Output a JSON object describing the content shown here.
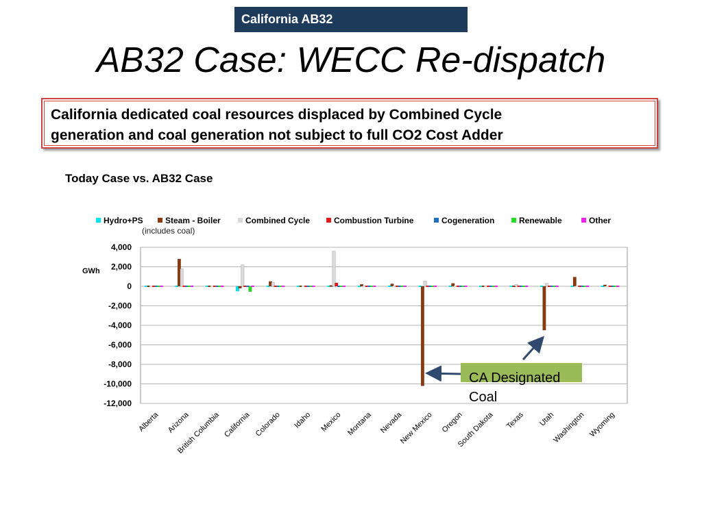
{
  "slide": {
    "tag": "California AB32",
    "title": "AB32 Case: WECC Re-dispatch",
    "callout_line1": "California dedicated coal resources displaced by Combined Cycle",
    "callout_line2": "generation and coal generation not subject to full CO2 Cost Adder",
    "subtitle": "Today Case  vs. AB32 Case",
    "note": "(includes coal)",
    "annotation": "CA Designated Coal"
  },
  "colors": {
    "tag_bg": "#1f3b5c",
    "callout_border": "#d04040",
    "annotation_bg": "#9bbb59"
  },
  "chart_data": {
    "type": "bar",
    "ylabel": "GWh",
    "ylim": [
      -12000,
      4000
    ],
    "yticks": [
      "4,000",
      "2,000",
      "0",
      "-2,000",
      "-4,000",
      "-6,000",
      "-8,000",
      "-10,000",
      "-12,000"
    ],
    "ytick_values": [
      4000,
      2000,
      0,
      -2000,
      -4000,
      -6000,
      -8000,
      -10000,
      -12000
    ],
    "grid": true,
    "legend_position": "top",
    "categories": [
      "Alberta",
      "Arizona",
      "British Columbia",
      "California",
      "Colorado",
      "Idaho",
      "Mexico",
      "Montana",
      "Nevada",
      "New Mexico",
      "Oregon",
      "South Dakota",
      "Texas",
      "Utah",
      "Washington",
      "Wyoming"
    ],
    "series": [
      {
        "name": "Hydro+PS",
        "color": "#00e5ee",
        "values": [
          0,
          0,
          0,
          -500,
          0,
          0,
          0,
          0,
          0,
          0,
          0,
          0,
          0,
          0,
          0,
          0
        ]
      },
      {
        "name": "Steam - Boiler",
        "color": "#8b3a0f",
        "values": [
          0,
          2800,
          0,
          -200,
          500,
          0,
          100,
          200,
          250,
          -10200,
          300,
          0,
          0,
          -4500,
          950,
          150
        ]
      },
      {
        "name": "Combined Cycle",
        "color": "#d9d9d9",
        "values": [
          0,
          1800,
          0,
          2200,
          400,
          0,
          3600,
          0,
          0,
          550,
          0,
          0,
          200,
          300,
          0,
          0
        ]
      },
      {
        "name": "Combustion Turbine",
        "color": "#e31a1c",
        "values": [
          0,
          0,
          0,
          0,
          0,
          0,
          350,
          0,
          0,
          0,
          0,
          0,
          0,
          0,
          0,
          0
        ]
      },
      {
        "name": "Cogeneration",
        "color": "#1f6fc5",
        "values": [
          0,
          0,
          0,
          0,
          0,
          0,
          0,
          0,
          0,
          0,
          0,
          0,
          0,
          0,
          0,
          0
        ]
      },
      {
        "name": "Renewable",
        "color": "#22dd22",
        "values": [
          0,
          0,
          0,
          -550,
          0,
          0,
          0,
          0,
          0,
          0,
          0,
          0,
          0,
          0,
          0,
          0
        ]
      },
      {
        "name": "Other",
        "color": "#ee22ee",
        "values": [
          0,
          0,
          0,
          0,
          0,
          0,
          0,
          0,
          0,
          0,
          0,
          0,
          0,
          0,
          0,
          0
        ]
      }
    ]
  }
}
